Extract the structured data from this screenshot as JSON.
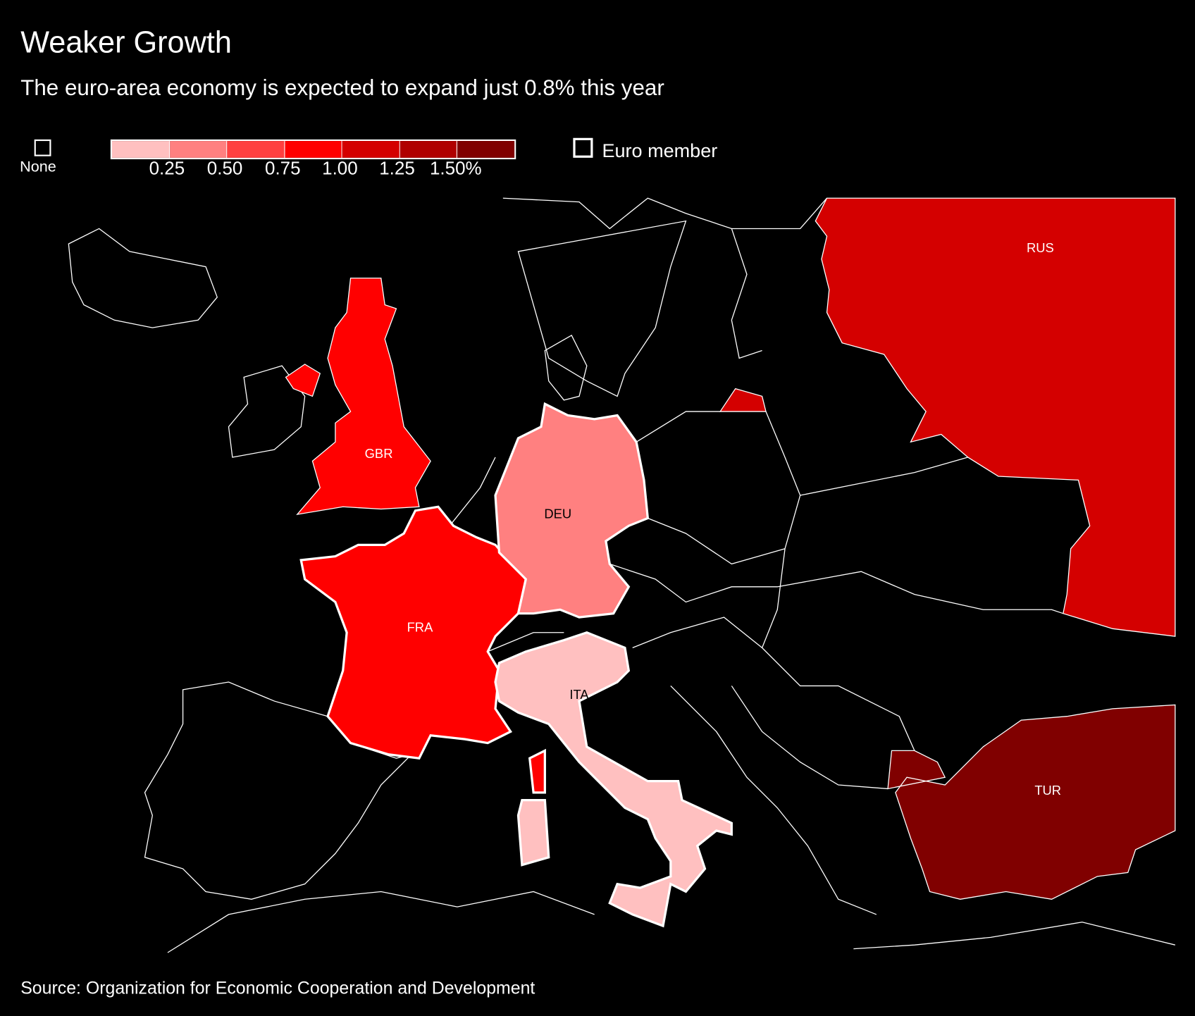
{
  "title": "Weaker Growth",
  "subtitle": "The euro-area economy is expected to expand just 0.8% this year",
  "legend": {
    "none_label": "None",
    "scale_colors": [
      "#ffc0c0",
      "#ff8080",
      "#ff4040",
      "#ff0000",
      "#d40000",
      "#b00000",
      "#800000"
    ],
    "ticks": [
      "0.25",
      "0.50",
      "0.75",
      "1.00",
      "1.25",
      "1.50%"
    ],
    "euro_member_label": "Euro member"
  },
  "countries": [
    {
      "code": "GBR",
      "bin": "0.75–1.00",
      "color": "#ff0000",
      "euro_member": false
    },
    {
      "code": "DEU",
      "bin": "0.25–0.50",
      "color": "#ff8080",
      "euro_member": true
    },
    {
      "code": "FRA",
      "bin": "0.75–1.00",
      "color": "#ff0000",
      "euro_member": true
    },
    {
      "code": "ITA",
      "bin": "0–0.25",
      "color": "#ffc0c0",
      "euro_member": true
    },
    {
      "code": "RUS",
      "bin": "1.00–1.25",
      "color": "#d40000",
      "euro_member": false
    },
    {
      "code": "TUR",
      "bin": ">1.50",
      "color": "#800000",
      "euro_member": false
    }
  ],
  "source": "Source: Organization for Economic Cooperation and Development"
}
